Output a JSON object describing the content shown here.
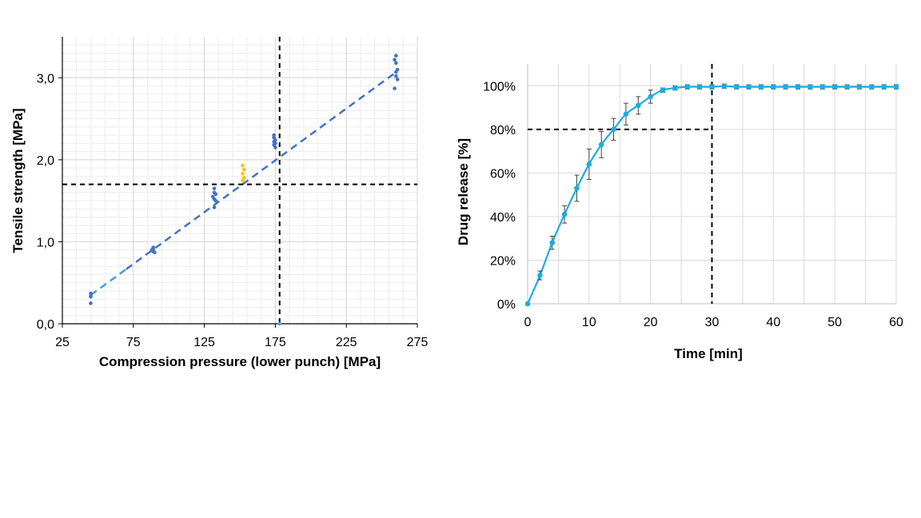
{
  "chart_data": [
    {
      "type": "scatter",
      "title": "",
      "xlabel": "Compression pressure (lower punch) [MPa]",
      "ylabel": "Tensile strength [MPa]",
      "xlim": [
        25,
        275
      ],
      "ylim": [
        0,
        3.5
      ],
      "x_ticks": [
        "25",
        "75",
        "125",
        "175",
        "225",
        "275"
      ],
      "y_ticks": [
        "0,0",
        "1,0",
        "2,0",
        "3,0"
      ],
      "grid": true,
      "series": [
        {
          "color": "#4472C4",
          "points": [
            [
              45,
              0.37
            ],
            [
              45,
              0.34
            ],
            [
              45,
              0.33
            ],
            [
              45,
              0.25
            ],
            [
              89,
              0.93
            ],
            [
              89,
              0.91
            ],
            [
              88,
              0.9
            ],
            [
              89,
              0.88
            ],
            [
              90,
              0.87
            ],
            [
              132,
              1.65
            ],
            [
              132,
              1.6
            ],
            [
              133,
              1.58
            ],
            [
              131,
              1.55
            ],
            [
              132,
              1.52
            ],
            [
              133,
              1.5
            ],
            [
              132,
              1.42
            ],
            [
              174,
              2.3
            ],
            [
              174,
              2.27
            ],
            [
              175,
              2.24
            ],
            [
              174,
              2.22
            ],
            [
              175,
              2.2
            ],
            [
              174,
              2.18
            ],
            [
              175,
              2.15
            ],
            [
              260,
              3.27
            ],
            [
              259,
              3.22
            ],
            [
              260,
              3.18
            ],
            [
              261,
              3.1
            ],
            [
              260,
              3.07
            ],
            [
              260,
              3.02
            ],
            [
              261,
              2.98
            ],
            [
              259,
              2.87
            ]
          ]
        },
        {
          "color": "#FFC000",
          "points": [
            [
              152,
              1.93
            ],
            [
              153,
              1.88
            ],
            [
              152,
              1.83
            ],
            [
              153,
              1.78
            ],
            [
              152,
              1.75
            ]
          ]
        },
        {
          "color": "#5B9BD5",
          "points": [
            [
              178,
              0.0
            ]
          ]
        }
      ],
      "fit_line": {
        "x": [
          45,
          261
        ],
        "y": [
          0.35,
          3.08
        ],
        "style": "dashed"
      },
      "reference_lines": {
        "horizontal_y": 1.7,
        "vertical_x": 178
      }
    },
    {
      "type": "line",
      "title": "",
      "xlabel": "Time [min]",
      "ylabel": "Drug release [%]",
      "xlim": [
        0,
        60
      ],
      "ylim": [
        0,
        110
      ],
      "x_ticks": [
        "0",
        "10",
        "20",
        "30",
        "40",
        "50",
        "60"
      ],
      "y_ticks": [
        "0%",
        "20%",
        "40%",
        "60%",
        "80%",
        "100%"
      ],
      "grid": true,
      "series": [
        {
          "color": "#1AAEE0",
          "x": [
            0,
            2,
            4,
            6,
            8,
            10,
            12,
            14,
            16,
            18,
            20,
            22,
            24,
            26,
            28,
            30,
            32,
            34,
            36,
            38,
            40,
            42,
            44,
            46,
            48,
            50,
            52,
            54,
            56,
            58,
            60
          ],
          "y": [
            0,
            13,
            28,
            41,
            53,
            64,
            73,
            80,
            87,
            91,
            95,
            98,
            99,
            99.5,
            99.5,
            99.5,
            99.8,
            99.5,
            99.5,
            99.5,
            99.5,
            99.5,
            99.5,
            99.5,
            99.5,
            99.5,
            99.5,
            99.5,
            99.5,
            99.5,
            99.5
          ],
          "err": [
            0,
            2,
            3,
            4,
            6,
            7,
            6,
            5,
            5,
            4,
            3,
            1,
            1,
            1,
            1,
            1,
            1,
            1,
            1,
            1,
            1,
            1,
            1,
            1,
            1,
            1,
            1,
            1,
            1,
            1,
            1
          ]
        }
      ],
      "reference_lines": {
        "horizontal_y": 80,
        "vertical_x": 30
      }
    }
  ]
}
